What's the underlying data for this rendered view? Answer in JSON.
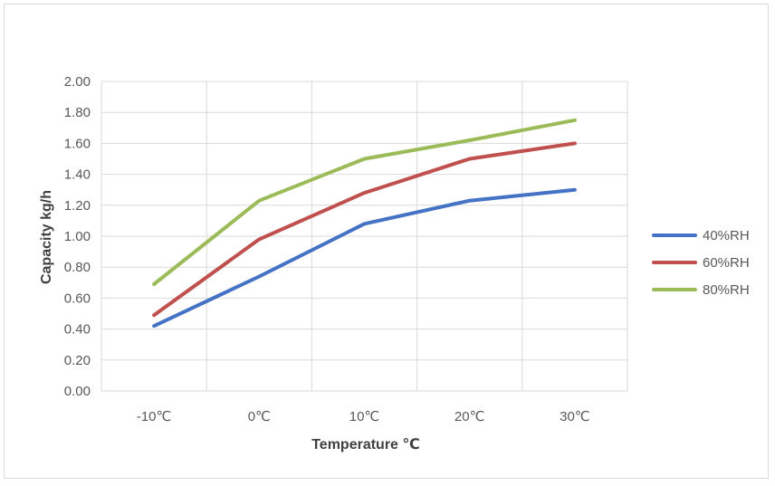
{
  "chart_data": {
    "type": "line",
    "title": "",
    "categories": [
      "-10℃",
      "0℃",
      "10℃",
      "20℃",
      "30℃"
    ],
    "xlabel": "Temperature ℃",
    "ylabel": "Capacity   kg/h",
    "ylim": [
      0,
      2.0
    ],
    "y_step": 0.2,
    "yticks": [
      "0.00",
      "0.20",
      "0.40",
      "0.60",
      "0.80",
      "1.00",
      "1.20",
      "1.40",
      "1.60",
      "1.80",
      "2.00"
    ],
    "grid": true,
    "legend_position": "right",
    "series": [
      {
        "name": "40%RH",
        "color": "#4472c4",
        "values": [
          0.42,
          0.74,
          1.08,
          1.23,
          1.3
        ]
      },
      {
        "name": "60%RH",
        "color": "#c0504d",
        "values": [
          0.49,
          0.98,
          1.28,
          1.5,
          1.6
        ]
      },
      {
        "name": "80%RH",
        "color": "#9bbb59",
        "values": [
          0.69,
          1.23,
          1.5,
          1.62,
          1.75
        ]
      }
    ]
  }
}
